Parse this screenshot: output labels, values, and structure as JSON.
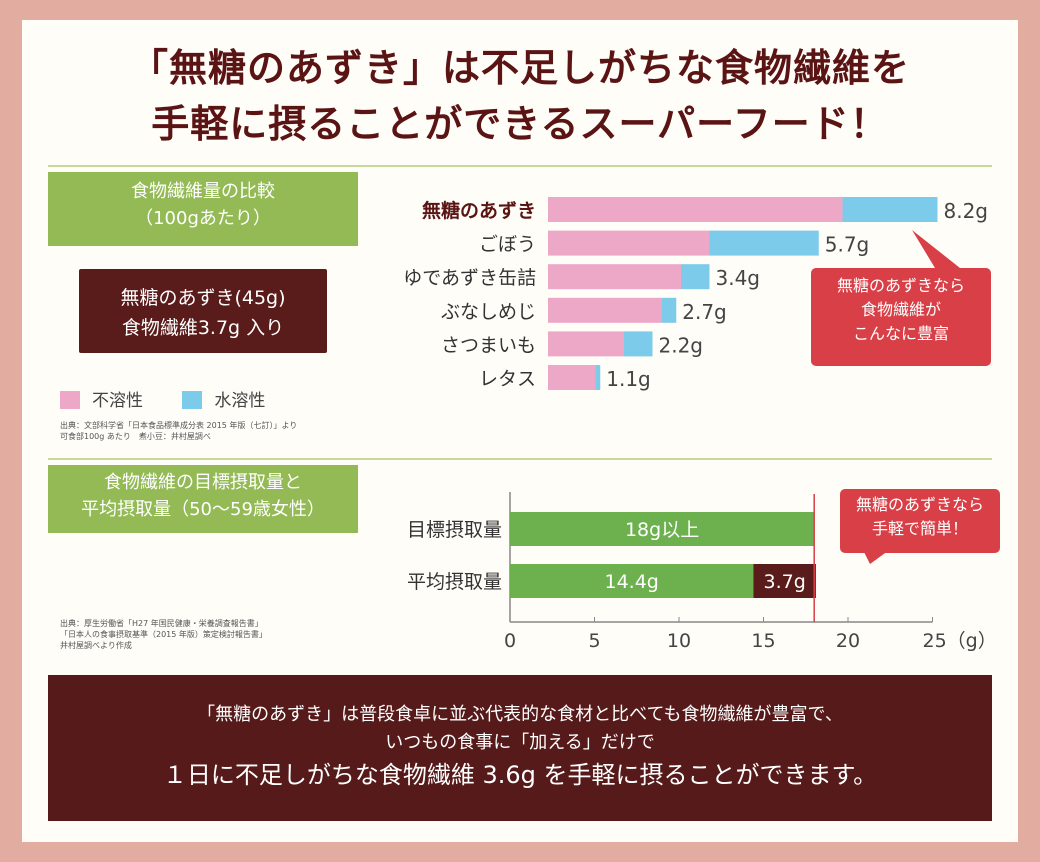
{
  "headline": {
    "line1": "「無糖のあずき」は不足しがちな食物繊維を",
    "line2": "手軽に摂ることができるスーパーフード！"
  },
  "section1": {
    "label_line1": "食物繊維量の比較",
    "label_line2": "（100gあたり）",
    "callout_line1": "無糖のあずき(45g)",
    "callout_line2": "食物繊維3.7g 入り",
    "bubble_line1": "無糖のあずきなら",
    "bubble_line2": "食物繊維が",
    "bubble_line3": "こんなに豊富",
    "source_line1": "出典：文部科学省「日本食品標準成分表 2015 年版（七訂）」より",
    "source_line2": "可食部100g あたり　煮小豆：井村屋調べ"
  },
  "section2": {
    "label_line1": "食物繊維の目標摂取量と",
    "label_line2": "平均摂取量（50〜59歳女性）",
    "bubble_line1": "無糖のあずきなら",
    "bubble_line2": "手軽で簡単！",
    "source_line1": "出典：厚生労働省「H27 年国民健康・栄養調査報告書」",
    "source_line2": "「日本人の食事摂取基準（2015 年版）策定検討報告書」",
    "source_line3": "井村屋調べより作成"
  },
  "footer": {
    "line1": "「無糖のあずき」は普段食卓に並ぶ代表的な食材と比べても食物繊維が豊富で、",
    "line2": "いつもの食事に「加える」だけで",
    "line3": "１日に不足しがちな食物繊維 3.6g を手軽に摂ることができます。"
  },
  "colors": {
    "insoluble": "#eda8c8",
    "soluble": "#7dcbea",
    "green": "#6db14f",
    "dark": "#5a1b1b",
    "red": "#d93f46"
  },
  "chart_data": [
    {
      "type": "bar",
      "orientation": "horizontal",
      "stacked": true,
      "title": "食物繊維量の比較（100gあたり）",
      "categories": [
        "無糖のあずき",
        "ごぼう",
        "ゆであずき缶詰",
        "ぶなしめじ",
        "さつまいも",
        "レタス"
      ],
      "series": [
        {
          "name": "不溶性",
          "color": "#eda8c8",
          "values": [
            6.2,
            3.4,
            2.8,
            2.4,
            1.6,
            1.0
          ]
        },
        {
          "name": "水溶性",
          "color": "#7dcbea",
          "values": [
            2.0,
            2.3,
            0.6,
            0.3,
            0.6,
            0.1
          ]
        }
      ],
      "data_labels": [
        "8.2g",
        "5.7g",
        "3.4g",
        "2.7g",
        "2.2g",
        "1.1g"
      ],
      "legend": "bottom-left",
      "grid": false
    },
    {
      "type": "bar",
      "orientation": "horizontal",
      "stacked": true,
      "title": "食物繊維の目標摂取量と平均摂取量（50〜59歳女性）",
      "categories": [
        "目標摂取量",
        "平均摂取量"
      ],
      "series": [
        {
          "color": "#6db14f",
          "values": [
            18,
            14.4
          ]
        },
        {
          "color": "#5a1b1b",
          "values": [
            0,
            3.7
          ]
        }
      ],
      "data_labels": [
        [
          "18g以上"
        ],
        [
          "14.4g",
          "3.7g"
        ]
      ],
      "x_ticks": [
        "0",
        "5",
        "10",
        "15",
        "20",
        "25（g）"
      ],
      "xlim": [
        0,
        25
      ],
      "reference_line": 18,
      "grid": false
    }
  ]
}
